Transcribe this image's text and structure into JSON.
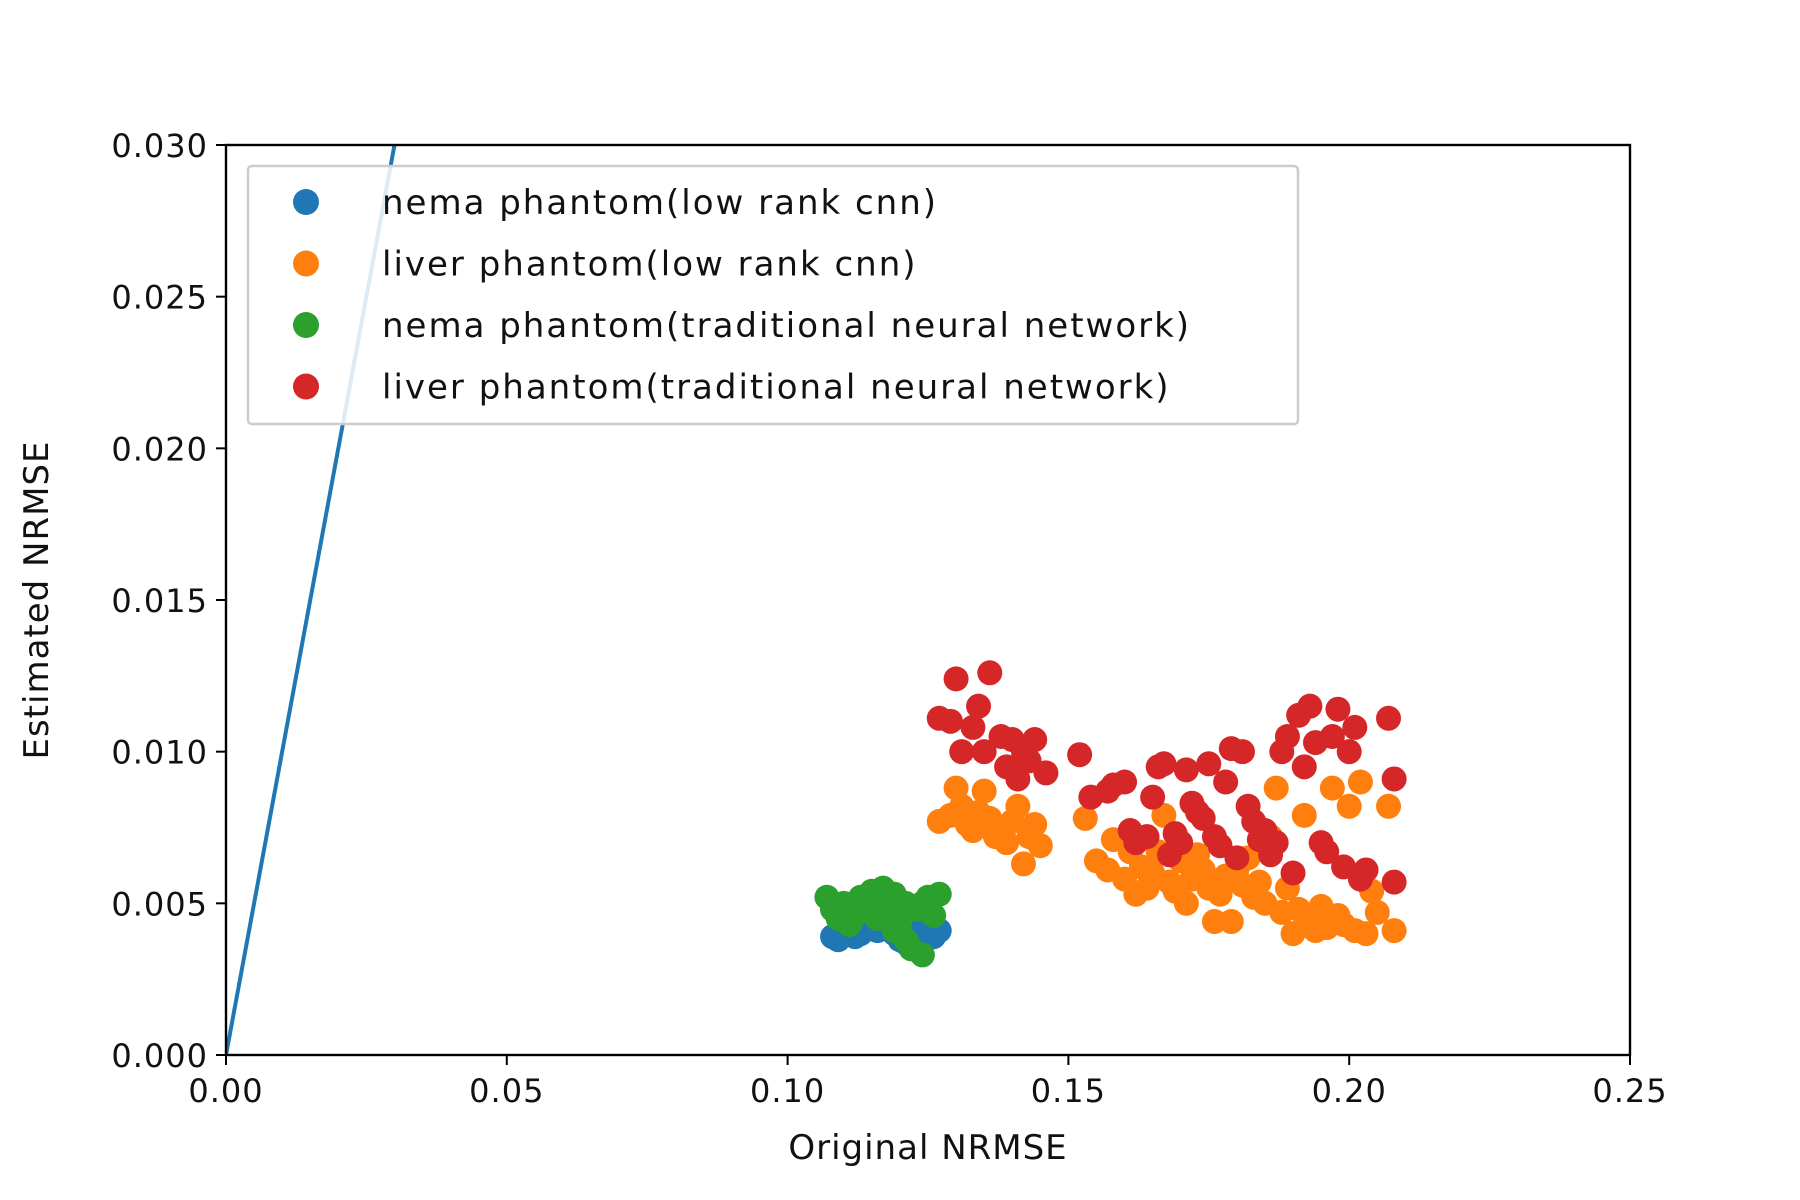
{
  "chart_data": {
    "type": "scatter",
    "title": "",
    "xlabel": "Original NRMSE",
    "ylabel": "Estimated NRMSE",
    "xlim": [
      0.0,
      0.25
    ],
    "ylim": [
      0.0,
      0.03
    ],
    "xticks": [
      "0.00",
      "0.05",
      "0.10",
      "0.15",
      "0.20",
      "0.25"
    ],
    "yticks": [
      "0.000",
      "0.005",
      "0.010",
      "0.015",
      "0.020",
      "0.025",
      "0.030"
    ],
    "grid": false,
    "legend_position": "top-left",
    "reference_line": {
      "color": "#1f77b4",
      "points": [
        [
          0.0,
          0.0
        ],
        [
          0.03,
          0.03
        ]
      ]
    },
    "series": [
      {
        "name": "nema phantom(low rank cnn)",
        "color": "#1f77b4",
        "points": [
          [
            0.108,
            0.0039
          ],
          [
            0.109,
            0.0038
          ],
          [
            0.11,
            0.004
          ],
          [
            0.111,
            0.0041
          ],
          [
            0.112,
            0.0039
          ],
          [
            0.113,
            0.004
          ],
          [
            0.114,
            0.0042
          ],
          [
            0.115,
            0.0043
          ],
          [
            0.116,
            0.0041
          ],
          [
            0.117,
            0.0044
          ],
          [
            0.118,
            0.0042
          ],
          [
            0.119,
            0.004
          ],
          [
            0.12,
            0.0038
          ],
          [
            0.121,
            0.0037
          ],
          [
            0.122,
            0.0039
          ],
          [
            0.123,
            0.0036
          ],
          [
            0.124,
            0.0038
          ],
          [
            0.125,
            0.004
          ],
          [
            0.126,
            0.0039
          ],
          [
            0.127,
            0.0041
          ],
          [
            0.109,
            0.004
          ],
          [
            0.112,
            0.0043
          ],
          [
            0.118,
            0.0045
          ],
          [
            0.121,
            0.0041
          ],
          [
            0.124,
            0.0043
          ]
        ]
      },
      {
        "name": "liver phantom(low rank cnn)",
        "color": "#ff7f0e",
        "points": [
          [
            0.127,
            0.0077
          ],
          [
            0.129,
            0.0079
          ],
          [
            0.13,
            0.0088
          ],
          [
            0.131,
            0.0082
          ],
          [
            0.132,
            0.0076
          ],
          [
            0.133,
            0.0074
          ],
          [
            0.134,
            0.008
          ],
          [
            0.135,
            0.0087
          ],
          [
            0.136,
            0.0078
          ],
          [
            0.137,
            0.0072
          ],
          [
            0.138,
            0.0075
          ],
          [
            0.139,
            0.007
          ],
          [
            0.14,
            0.0077
          ],
          [
            0.141,
            0.0082
          ],
          [
            0.142,
            0.0063
          ],
          [
            0.143,
            0.0072
          ],
          [
            0.144,
            0.0076
          ],
          [
            0.145,
            0.0069
          ],
          [
            0.153,
            0.0078
          ],
          [
            0.155,
            0.0064
          ],
          [
            0.157,
            0.0061
          ],
          [
            0.158,
            0.0071
          ],
          [
            0.16,
            0.0058
          ],
          [
            0.161,
            0.0067
          ],
          [
            0.162,
            0.0053
          ],
          [
            0.163,
            0.0062
          ],
          [
            0.164,
            0.0055
          ],
          [
            0.165,
            0.006
          ],
          [
            0.166,
            0.0067
          ],
          [
            0.167,
            0.0079
          ],
          [
            0.168,
            0.0057
          ],
          [
            0.169,
            0.0054
          ],
          [
            0.17,
            0.0064
          ],
          [
            0.171,
            0.005
          ],
          [
            0.172,
            0.0058
          ],
          [
            0.173,
            0.0066
          ],
          [
            0.174,
            0.0061
          ],
          [
            0.175,
            0.0055
          ],
          [
            0.176,
            0.0044
          ],
          [
            0.177,
            0.0053
          ],
          [
            0.178,
            0.0059
          ],
          [
            0.179,
            0.0044
          ],
          [
            0.18,
            0.0061
          ],
          [
            0.181,
            0.0056
          ],
          [
            0.182,
            0.0065
          ],
          [
            0.183,
            0.0052
          ],
          [
            0.184,
            0.0057
          ],
          [
            0.185,
            0.005
          ],
          [
            0.186,
            0.0072
          ],
          [
            0.187,
            0.0088
          ],
          [
            0.188,
            0.0047
          ],
          [
            0.189,
            0.0055
          ],
          [
            0.19,
            0.004
          ],
          [
            0.191,
            0.0048
          ],
          [
            0.192,
            0.0079
          ],
          [
            0.193,
            0.0044
          ],
          [
            0.194,
            0.0041
          ],
          [
            0.195,
            0.0049
          ],
          [
            0.196,
            0.0042
          ],
          [
            0.197,
            0.0088
          ],
          [
            0.198,
            0.0046
          ],
          [
            0.199,
            0.0043
          ],
          [
            0.2,
            0.0082
          ],
          [
            0.201,
            0.0041
          ],
          [
            0.202,
            0.009
          ],
          [
            0.203,
            0.004
          ],
          [
            0.204,
            0.0054
          ],
          [
            0.205,
            0.0047
          ],
          [
            0.207,
            0.0082
          ],
          [
            0.208,
            0.0041
          ]
        ]
      },
      {
        "name": "nema phantom(traditional neural network)",
        "color": "#2ca02c",
        "points": [
          [
            0.107,
            0.0052
          ],
          [
            0.108,
            0.0048
          ],
          [
            0.109,
            0.0045
          ],
          [
            0.11,
            0.005
          ],
          [
            0.111,
            0.0043
          ],
          [
            0.112,
            0.0046
          ],
          [
            0.113,
            0.0052
          ],
          [
            0.114,
            0.0049
          ],
          [
            0.115,
            0.0054
          ],
          [
            0.116,
            0.0051
          ],
          [
            0.117,
            0.0055
          ],
          [
            0.118,
            0.0047
          ],
          [
            0.119,
            0.0053
          ],
          [
            0.12,
            0.0044
          ],
          [
            0.121,
            0.005
          ],
          [
            0.122,
            0.0035
          ],
          [
            0.123,
            0.0048
          ],
          [
            0.124,
            0.0033
          ],
          [
            0.125,
            0.0052
          ],
          [
            0.126,
            0.0046
          ],
          [
            0.127,
            0.0053
          ],
          [
            0.119,
            0.0041
          ],
          [
            0.121,
            0.0038
          ],
          [
            0.116,
            0.0045
          ],
          [
            0.124,
            0.005
          ]
        ]
      },
      {
        "name": "liver phantom(traditional neural network)",
        "color": "#d62728",
        "points": [
          [
            0.127,
            0.0111
          ],
          [
            0.129,
            0.011
          ],
          [
            0.13,
            0.0124
          ],
          [
            0.131,
            0.01
          ],
          [
            0.133,
            0.0108
          ],
          [
            0.134,
            0.0115
          ],
          [
            0.135,
            0.01
          ],
          [
            0.136,
            0.0126
          ],
          [
            0.138,
            0.0105
          ],
          [
            0.139,
            0.0095
          ],
          [
            0.14,
            0.0104
          ],
          [
            0.141,
            0.0091
          ],
          [
            0.142,
            0.01
          ],
          [
            0.143,
            0.0097
          ],
          [
            0.144,
            0.0104
          ],
          [
            0.146,
            0.0093
          ],
          [
            0.152,
            0.0099
          ],
          [
            0.154,
            0.0085
          ],
          [
            0.157,
            0.0087
          ],
          [
            0.158,
            0.0089
          ],
          [
            0.16,
            0.009
          ],
          [
            0.161,
            0.0074
          ],
          [
            0.162,
            0.007
          ],
          [
            0.164,
            0.0072
          ],
          [
            0.165,
            0.0085
          ],
          [
            0.166,
            0.0095
          ],
          [
            0.167,
            0.0096
          ],
          [
            0.168,
            0.0066
          ],
          [
            0.169,
            0.0073
          ],
          [
            0.17,
            0.007
          ],
          [
            0.171,
            0.0094
          ],
          [
            0.172,
            0.0083
          ],
          [
            0.173,
            0.008
          ],
          [
            0.174,
            0.0078
          ],
          [
            0.175,
            0.0096
          ],
          [
            0.176,
            0.0072
          ],
          [
            0.177,
            0.0069
          ],
          [
            0.178,
            0.009
          ],
          [
            0.179,
            0.0101
          ],
          [
            0.18,
            0.0065
          ],
          [
            0.181,
            0.01
          ],
          [
            0.182,
            0.0082
          ],
          [
            0.183,
            0.0077
          ],
          [
            0.184,
            0.0071
          ],
          [
            0.185,
            0.0074
          ],
          [
            0.186,
            0.0066
          ],
          [
            0.187,
            0.007
          ],
          [
            0.188,
            0.01
          ],
          [
            0.189,
            0.0105
          ],
          [
            0.19,
            0.006
          ],
          [
            0.191,
            0.0112
          ],
          [
            0.192,
            0.0095
          ],
          [
            0.193,
            0.0115
          ],
          [
            0.194,
            0.0103
          ],
          [
            0.195,
            0.007
          ],
          [
            0.196,
            0.0067
          ],
          [
            0.197,
            0.0105
          ],
          [
            0.198,
            0.0114
          ],
          [
            0.199,
            0.0062
          ],
          [
            0.2,
            0.01
          ],
          [
            0.201,
            0.0108
          ],
          [
            0.202,
            0.0058
          ],
          [
            0.203,
            0.0061
          ],
          [
            0.207,
            0.0111
          ],
          [
            0.208,
            0.0091
          ],
          [
            0.208,
            0.0057
          ]
        ]
      }
    ]
  }
}
